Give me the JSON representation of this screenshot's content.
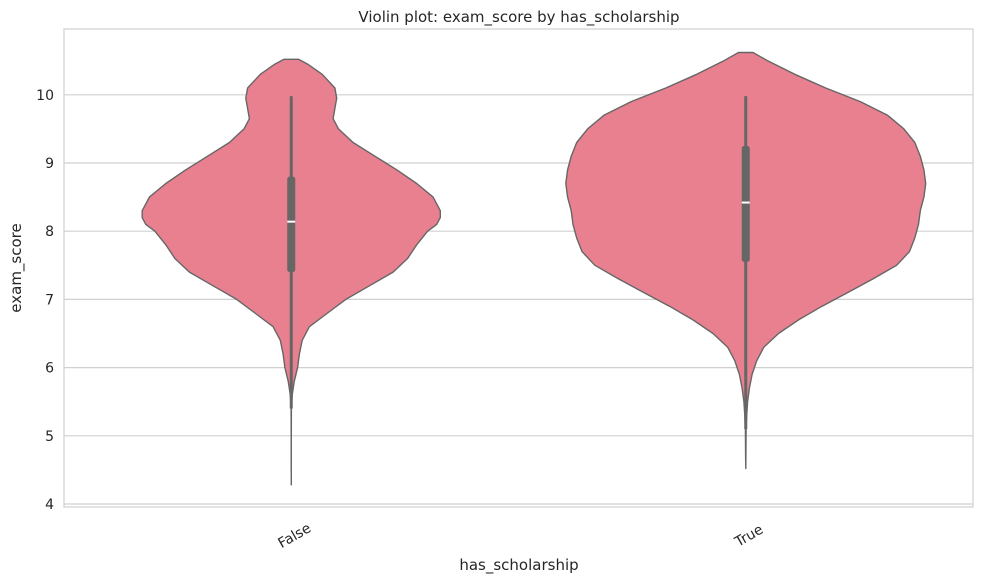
{
  "chart_data": {
    "type": "violin",
    "title": "Violin plot: exam_score by has_scholarship",
    "xlabel": "has_scholarship",
    "ylabel": "exam_score",
    "ylim": [
      3.95,
      10.95
    ],
    "yticks": [
      4,
      5,
      6,
      7,
      8,
      9,
      10
    ],
    "grid": true,
    "violin_color": "#e8808f",
    "edge_color": "#666666",
    "categories": [
      "False",
      "True"
    ],
    "violins": [
      {
        "category": "False",
        "profile": [
          [
            10.52,
            0.04
          ],
          [
            10.45,
            0.09
          ],
          [
            10.3,
            0.17
          ],
          [
            10.1,
            0.24
          ],
          [
            9.95,
            0.25
          ],
          [
            9.8,
            0.24
          ],
          [
            9.65,
            0.23
          ],
          [
            9.5,
            0.26
          ],
          [
            9.3,
            0.34
          ],
          [
            9.1,
            0.46
          ],
          [
            8.9,
            0.58
          ],
          [
            8.7,
            0.69
          ],
          [
            8.5,
            0.78
          ],
          [
            8.3,
            0.82
          ],
          [
            8.2,
            0.82
          ],
          [
            8.1,
            0.8
          ],
          [
            8.0,
            0.75
          ],
          [
            7.8,
            0.69
          ],
          [
            7.6,
            0.64
          ],
          [
            7.4,
            0.56
          ],
          [
            7.2,
            0.43
          ],
          [
            7.0,
            0.3
          ],
          [
            6.8,
            0.2
          ],
          [
            6.6,
            0.1
          ],
          [
            6.4,
            0.06
          ],
          [
            6.2,
            0.045
          ],
          [
            6.0,
            0.035
          ],
          [
            5.8,
            0.017
          ],
          [
            5.6,
            0.005
          ],
          [
            5.4,
            0.001
          ],
          [
            5.0,
            0.0005
          ],
          [
            4.6,
            0.0002
          ],
          [
            4.28,
            0.0
          ]
        ],
        "whisker": [
          5.4,
          9.98
        ],
        "q1": 7.4,
        "q3": 8.8,
        "median": 8.14
      },
      {
        "category": "True",
        "profile": [
          [
            10.62,
            0.04
          ],
          [
            10.5,
            0.12
          ],
          [
            10.3,
            0.27
          ],
          [
            10.1,
            0.44
          ],
          [
            9.9,
            0.63
          ],
          [
            9.7,
            0.78
          ],
          [
            9.5,
            0.87
          ],
          [
            9.3,
            0.93
          ],
          [
            9.1,
            0.96
          ],
          [
            8.9,
            0.98
          ],
          [
            8.7,
            0.99
          ],
          [
            8.5,
            0.98
          ],
          [
            8.3,
            0.96
          ],
          [
            8.1,
            0.95
          ],
          [
            7.9,
            0.93
          ],
          [
            7.7,
            0.9
          ],
          [
            7.5,
            0.83
          ],
          [
            7.3,
            0.7
          ],
          [
            7.1,
            0.56
          ],
          [
            6.9,
            0.42
          ],
          [
            6.7,
            0.29
          ],
          [
            6.5,
            0.18
          ],
          [
            6.3,
            0.1
          ],
          [
            6.1,
            0.06
          ],
          [
            5.9,
            0.035
          ],
          [
            5.7,
            0.02
          ],
          [
            5.5,
            0.01
          ],
          [
            5.3,
            0.005
          ],
          [
            5.1,
            0.002
          ],
          [
            4.9,
            0.0015
          ],
          [
            4.7,
            0.001
          ],
          [
            4.52,
            0.0
          ]
        ],
        "whisker": [
          5.1,
          9.98
        ],
        "q1": 7.55,
        "q3": 9.25,
        "median": 8.42
      }
    ]
  }
}
